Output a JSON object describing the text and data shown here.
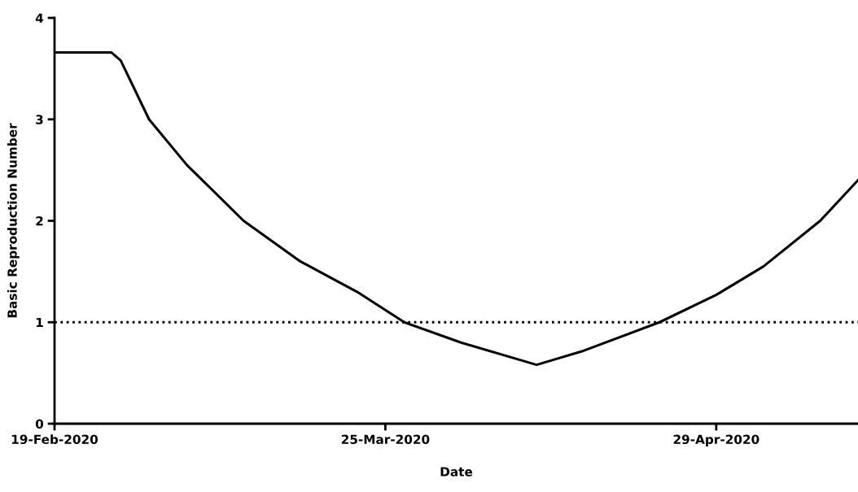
{
  "chart_data": {
    "type": "line",
    "xlabel": "Date",
    "ylabel": "Basic Reproduction Number",
    "x": [
      "2020-02-19",
      "2020-02-25",
      "2020-02-26",
      "2020-02-29",
      "2020-03-04",
      "2020-03-10",
      "2020-03-16",
      "2020-03-22",
      "2020-03-27",
      "2020-04-02",
      "2020-04-10",
      "2020-04-15",
      "2020-04-23",
      "2020-04-29",
      "2020-05-04",
      "2020-05-10",
      "2020-05-14"
    ],
    "series": [
      {
        "color": "#000000",
        "values": [
          3.66,
          3.66,
          3.58,
          3.0,
          2.55,
          2.0,
          1.6,
          1.3,
          1.0,
          0.8,
          0.58,
          0.72,
          1.0,
          1.27,
          1.55,
          2.0,
          2.4
        ]
      }
    ],
    "xlim": [
      "2020-02-19",
      "2020-05-14"
    ],
    "xticks": [
      {
        "value": "2020-02-19",
        "label": "19-Feb-2020"
      },
      {
        "value": "2020-03-25",
        "label": "25-Mar-2020"
      },
      {
        "value": "2020-04-29",
        "label": "29-Apr-2020"
      }
    ],
    "ylim": [
      0,
      4
    ],
    "yticks": [
      0,
      1,
      2,
      3,
      4
    ],
    "grid": false,
    "legend": false,
    "marker": "none",
    "line_style": "solid",
    "ref_lines": [
      {
        "axis": "y",
        "value": 1,
        "line_style": "dotted",
        "color": "#000000"
      }
    ]
  }
}
